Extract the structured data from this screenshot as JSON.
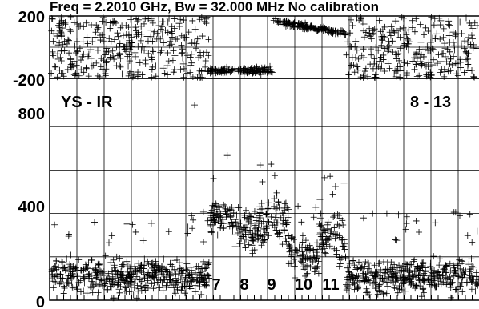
{
  "chart_data": {
    "type": "scatter",
    "title": "Freq = 2.2010 GHz, Bw = 32.000 MHz   No calibration",
    "xlabel": "",
    "ylabel": "",
    "grid": true,
    "panels": [
      {
        "name": "phase",
        "y_ticks": [
          "200",
          "-200"
        ],
        "ylim": [
          -200,
          200
        ]
      },
      {
        "name": "amplitude",
        "y_ticks": [
          "800",
          "400",
          "0"
        ],
        "ylim": [
          0,
          1000
        ],
        "baseline_label": "YS - IR",
        "channel_range_label": "8 - 13"
      }
    ],
    "scan_segments": [
      "7",
      "8",
      "9",
      "10",
      "11"
    ],
    "amplitude_levels": [
      {
        "segment": "pre",
        "approx_mean": 110
      },
      {
        "segment": "7",
        "approx_mean": 380
      },
      {
        "segment": "8",
        "approx_mean": 330
      },
      {
        "segment": "9",
        "approx_mean": 370
      },
      {
        "segment": "10",
        "approx_mean": 210
      },
      {
        "segment": "11",
        "approx_mean": 280
      },
      {
        "segment": "post",
        "approx_mean": 110
      }
    ]
  }
}
